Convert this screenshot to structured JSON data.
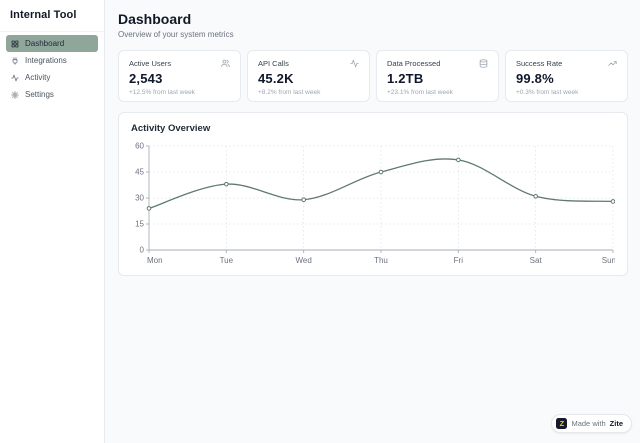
{
  "sidebar": {
    "title": "Internal Tool",
    "items": [
      {
        "label": "Dashboard",
        "icon": "grid-icon",
        "active": true
      },
      {
        "label": "Integrations",
        "icon": "plug-icon",
        "active": false
      },
      {
        "label": "Activity",
        "icon": "activity-icon",
        "active": false
      },
      {
        "label": "Settings",
        "icon": "gear-icon",
        "active": false
      }
    ]
  },
  "header": {
    "title": "Dashboard",
    "subtitle": "Overview of your system metrics"
  },
  "stats": [
    {
      "label": "Active Users",
      "value": "2,543",
      "change": "+12.5% from last week",
      "icon": "users-icon"
    },
    {
      "label": "API Calls",
      "value": "45.2K",
      "change": "+8.2% from last week",
      "icon": "activity-icon"
    },
    {
      "label": "Data Processed",
      "value": "1.2TB",
      "change": "+23.1% from last week",
      "icon": "database-icon"
    },
    {
      "label": "Success Rate",
      "value": "99.8%",
      "change": "+0.3% from last week",
      "icon": "trending-up-icon"
    }
  ],
  "chart_data": {
    "type": "line",
    "title": "Activity Overview",
    "categories": [
      "Mon",
      "Tue",
      "Wed",
      "Thu",
      "Fri",
      "Sat",
      "Sun"
    ],
    "values": [
      24,
      38,
      29,
      45,
      52,
      31,
      28
    ],
    "yticks": [
      0,
      15,
      30,
      45,
      60
    ],
    "ylim": [
      0,
      60
    ],
    "xlabel": "",
    "ylabel": "",
    "grid": true,
    "legend_position": "none",
    "line_color": "#5f7a6e",
    "point_fill": "#ffffff"
  },
  "badge": {
    "prefix": "Made with",
    "brand": "Zite",
    "logo_letter": "Z"
  },
  "colors": {
    "active_nav_bg": "#8fa79b",
    "chart_line": "#5f7a6e",
    "badge_logo_bg": "#15192b",
    "badge_logo_fg": "#f8c822"
  }
}
